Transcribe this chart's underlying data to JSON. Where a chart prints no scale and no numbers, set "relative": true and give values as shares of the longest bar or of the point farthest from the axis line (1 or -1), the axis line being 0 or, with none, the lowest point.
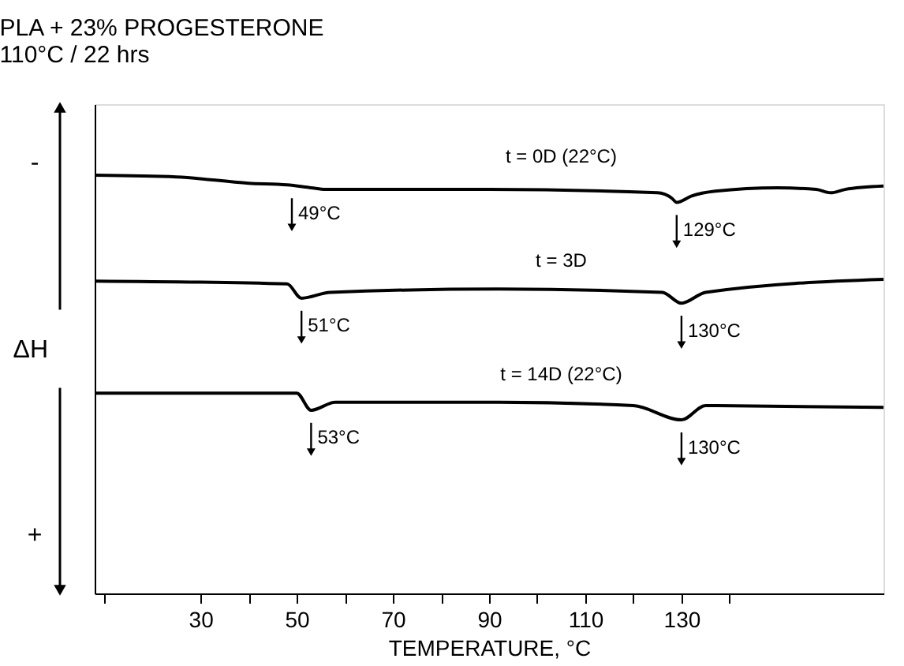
{
  "chart_data": {
    "type": "line",
    "title": "PLA + 23% PROGESTERONE",
    "subtitle": "110°C / 22 hrs",
    "xlabel": "TEMPERATURE, °C",
    "ylabel": "ΔH",
    "relative": true,
    "xlim": [
      8,
      172
    ],
    "xticks": [
      {
        "value": 10,
        "label": null
      },
      30,
      {
        "value": 40,
        "label": null
      },
      50,
      {
        "value": 60,
        "label": null
      },
      70,
      {
        "value": 80,
        "label": null
      },
      90,
      {
        "value": 100,
        "label": null
      },
      110,
      {
        "value": 120,
        "label": null
      },
      130,
      {
        "value": 140,
        "label": null
      }
    ],
    "tick_labels": "x",
    "grid": false,
    "legend": false,
    "marker": "none",
    "line_style": "solid",
    "series": [
      {
        "name": "t = 0D (22°C)",
        "color": "#000000",
        "x": [
          8,
          25,
          40,
          48,
          53,
          56,
          90,
          125,
          128,
          129,
          132,
          137,
          150,
          158,
          161,
          164,
          172
        ],
        "values": [
          1.0,
          0.996,
          0.981,
          0.977,
          0.97,
          0.966,
          0.966,
          0.958,
          0.945,
          0.935,
          0.95,
          0.962,
          0.97,
          0.966,
          0.958,
          0.966,
          0.974
        ]
      },
      {
        "name": "t = 3D",
        "color": "#000000",
        "x": [
          8,
          48,
          51,
          57,
          92,
          126,
          130,
          135,
          172
        ],
        "values": [
          0.747,
          0.74,
          0.706,
          0.72,
          0.728,
          0.72,
          0.694,
          0.72,
          0.751
        ]
      },
      {
        "name": "t = 14D (22°C)",
        "color": "#000000",
        "x": [
          8,
          50,
          53,
          58,
          92,
          120,
          130,
          135,
          172
        ],
        "values": [
          0.479,
          0.479,
          0.438,
          0.457,
          0.457,
          0.449,
          0.415,
          0.449,
          0.445
        ]
      }
    ],
    "annotations": [
      {
        "text": "49°C",
        "x": 49,
        "y": 0.975
      },
      {
        "text": "129°C",
        "x": 129,
        "y": 0.935
      },
      {
        "text": "51°C",
        "x": 51,
        "y": 0.706
      },
      {
        "text": "130°C",
        "x": 130,
        "y": 0.694
      },
      {
        "text": "53°C",
        "x": 53,
        "y": 0.438
      },
      {
        "text": "130°C",
        "x": 130,
        "y": 0.415
      },
      "-",
      "+"
    ]
  }
}
